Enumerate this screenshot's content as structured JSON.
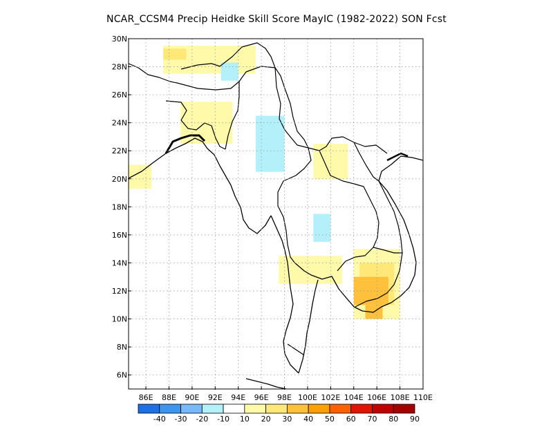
{
  "title": "NCAR_CCSM4 Precip Heidke Skill Score MayIC (1982-2022) SON Fcst",
  "lat_labels": [
    "30N",
    "28N",
    "26N",
    "24N",
    "22N",
    "20N",
    "18N",
    "16N",
    "14N",
    "12N",
    "10N",
    "8N",
    "6N"
  ],
  "lat_values": [
    30,
    28,
    26,
    24,
    22,
    20,
    18,
    16,
    14,
    12,
    10,
    8,
    6
  ],
  "lon_labels": [
    "86E",
    "88E",
    "90E",
    "92E",
    "94E",
    "96E",
    "98E",
    "100E",
    "102E",
    "104E",
    "106E",
    "108E",
    "110E"
  ],
  "lon_values": [
    86,
    88,
    90,
    92,
    94,
    96,
    98,
    100,
    102,
    104,
    106,
    108,
    110
  ],
  "map_extent": {
    "lon_min": 84.5,
    "lon_max": 110,
    "lat_min": 5,
    "lat_max": 30
  },
  "colorbar": {
    "labels": [
      "-40",
      "-30",
      "-20",
      "-10",
      "10",
      "20",
      "30",
      "40",
      "50",
      "60",
      "70",
      "80",
      "90"
    ],
    "colors": [
      "#1e6ee6",
      "#3c96f0",
      "#78b9fa",
      "#b4f0fa",
      "#ffffff",
      "#fffaaa",
      "#ffe878",
      "#ffc03c",
      "#ffa000",
      "#ff6000",
      "#e11400",
      "#c00000",
      "#a50000"
    ]
  },
  "skill_regions": [
    {
      "level": "10",
      "color": "#fffaaa",
      "lon": [
        87.5,
        95.5
      ],
      "lat": [
        27.5,
        29.5
      ]
    },
    {
      "level": "20",
      "color": "#ffe878",
      "lon": [
        87.5,
        89.5
      ],
      "lat": [
        28.5,
        29.3
      ]
    },
    {
      "level": "10",
      "color": "#fffaaa",
      "lon": [
        89.0,
        93.5
      ],
      "lat": [
        22.5,
        25.5
      ]
    },
    {
      "level": "10",
      "color": "#fffaaa",
      "lon": [
        84.5,
        86.5
      ],
      "lat": [
        19.3,
        21.0
      ]
    },
    {
      "level": "10",
      "color": "#fffaaa",
      "lon": [
        100.5,
        103.5
      ],
      "lat": [
        20.0,
        22.5
      ]
    },
    {
      "level": "10",
      "color": "#fffaaa",
      "lon": [
        97.5,
        103.0
      ],
      "lat": [
        12.5,
        14.5
      ]
    },
    {
      "level": "10",
      "color": "#fffaaa",
      "lon": [
        104.0,
        108.0
      ],
      "lat": [
        10.0,
        15.0
      ]
    },
    {
      "level": "20",
      "color": "#ffe878",
      "lon": [
        104.5,
        107.5
      ],
      "lat": [
        11.0,
        14.0
      ]
    },
    {
      "level": "30",
      "color": "#ffc03c",
      "lon": [
        104.0,
        107.0
      ],
      "lat": [
        11.0,
        13.0
      ]
    },
    {
      "level": "30",
      "color": "#ffc03c",
      "lon": [
        105.0,
        106.5
      ],
      "lat": [
        10.0,
        11.0
      ]
    },
    {
      "level": "-10",
      "color": "#b4f0fa",
      "lon": [
        95.5,
        98.0
      ],
      "lat": [
        20.5,
        24.5
      ]
    },
    {
      "level": "-10",
      "color": "#b4f0fa",
      "lon": [
        100.5,
        102.0
      ],
      "lat": [
        15.5,
        17.5
      ]
    },
    {
      "level": "-10",
      "color": "#b4f0fa",
      "lon": [
        92.5,
        94.0
      ],
      "lat": [
        27.0,
        28.3
      ]
    }
  ]
}
